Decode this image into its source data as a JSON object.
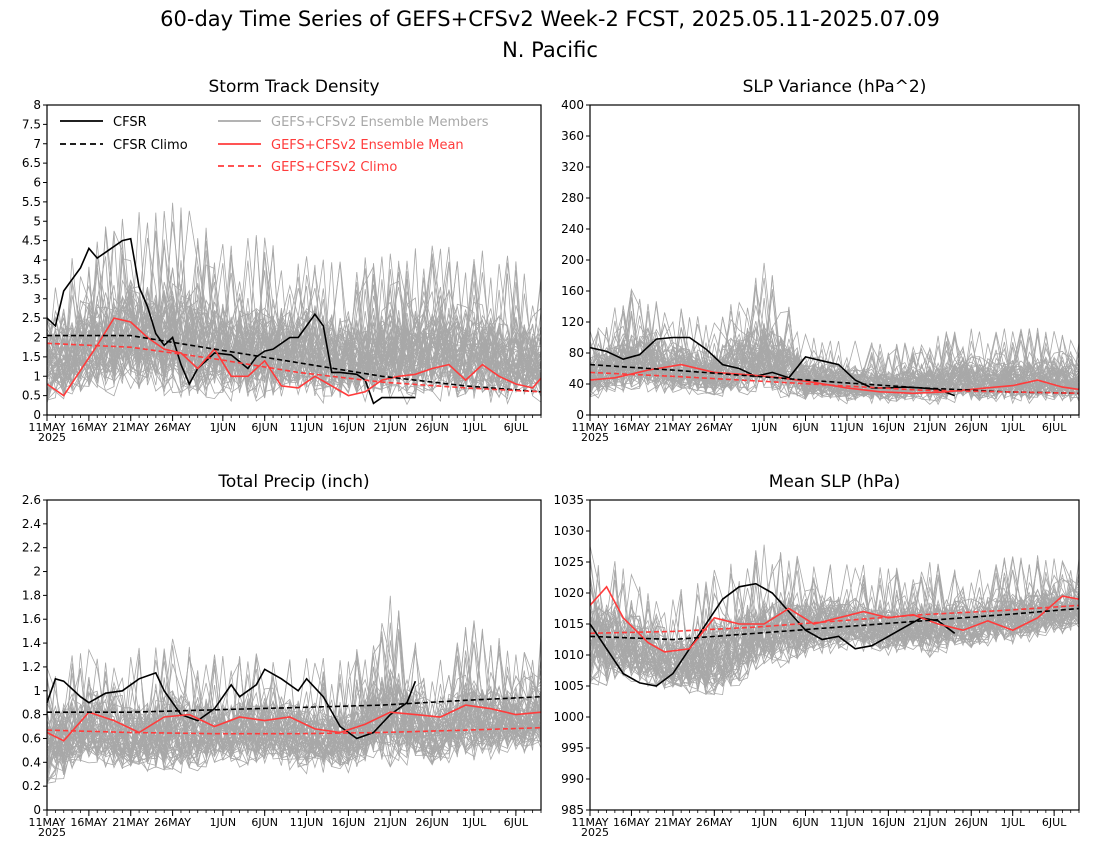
{
  "figure": {
    "title_line1": "60-day Time Series of GEFS+CFSv2 Week-2 FCST, 2025.05.11-2025.07.09",
    "title_line2": "N. Pacific"
  },
  "colors": {
    "members": "#a8a8a8",
    "cfsr": "#000000",
    "ens_mean": "#ff3b3b"
  },
  "legend": {
    "cfsr": "CFSR",
    "cfsr_climo": "CFSR Climo",
    "members": "GEFS+CFSv2 Ensemble Members",
    "ens_mean": "GEFS+CFSv2 Ensemble Mean",
    "gefs_climo": "GEFS+CFSv2 Climo",
    "placement": "top-left of Storm Track Density panel"
  },
  "x_axis": {
    "type": "date",
    "range": [
      "2025-05-11",
      "2025-07-09"
    ],
    "ticks": [
      {
        "date": "2025-05-11",
        "label": "11MAY"
      },
      {
        "date": "2025-05-16",
        "label": "16MAY"
      },
      {
        "date": "2025-05-21",
        "label": "21MAY"
      },
      {
        "date": "2025-05-26",
        "label": "26MAY"
      },
      {
        "date": "2025-06-01",
        "label": "1JUN"
      },
      {
        "date": "2025-06-06",
        "label": "6JUN"
      },
      {
        "date": "2025-06-11",
        "label": "11JUN"
      },
      {
        "date": "2025-06-16",
        "label": "16JUN"
      },
      {
        "date": "2025-06-21",
        "label": "21JUN"
      },
      {
        "date": "2025-06-26",
        "label": "26JUN"
      },
      {
        "date": "2025-07-01",
        "label": "1JUL"
      },
      {
        "date": "2025-07-06",
        "label": "6JUL"
      }
    ],
    "year_label": "2025"
  },
  "chart_data": [
    {
      "type": "line",
      "title": "Storm Track Density",
      "ylim": [
        0,
        8
      ],
      "yticks": [
        "0",
        "0.5",
        "1",
        "1.5",
        "2",
        "2.5",
        "3",
        "3.5",
        "4",
        "4.5",
        "5",
        "5.5",
        "6",
        "6.5",
        "7",
        "7.5",
        "8"
      ],
      "members_band": {
        "dates": [
          "2025-05-11",
          "2025-05-16",
          "2025-05-21",
          "2025-05-26",
          "2025-06-01",
          "2025-06-06",
          "2025-06-11",
          "2025-06-16",
          "2025-06-21",
          "2025-06-26",
          "2025-07-01",
          "2025-07-06",
          "2025-07-09"
        ],
        "low": [
          0.2,
          0.2,
          0.3,
          0.1,
          0.1,
          0.1,
          0.1,
          0.1,
          0.1,
          0.1,
          0.1,
          0.1,
          0.1
        ],
        "high": [
          3.2,
          4.7,
          5.2,
          5.7,
          4.6,
          4.7,
          4.3,
          4.0,
          4.2,
          4.5,
          4.3,
          4.1,
          3.9
        ]
      },
      "series": [
        {
          "name": "CFSR",
          "style": "solid-black",
          "x": [
            "2025-05-11",
            "2025-05-12",
            "2025-05-13",
            "2025-05-15",
            "2025-05-16",
            "2025-05-17",
            "2025-05-18",
            "2025-05-20",
            "2025-05-21",
            "2025-05-22",
            "2025-05-23",
            "2025-05-24",
            "2025-05-25",
            "2025-05-26",
            "2025-05-27",
            "2025-05-28",
            "2025-05-29",
            "2025-05-31",
            "2025-06-02",
            "2025-06-04",
            "2025-06-05",
            "2025-06-06",
            "2025-06-07",
            "2025-06-09",
            "2025-06-10",
            "2025-06-11",
            "2025-06-12",
            "2025-06-13",
            "2025-06-14",
            "2025-06-15",
            "2025-06-17",
            "2025-06-18",
            "2025-06-19",
            "2025-06-20",
            "2025-06-24"
          ],
          "y": [
            2.5,
            2.3,
            3.2,
            3.8,
            4.3,
            4.05,
            4.2,
            4.5,
            4.55,
            3.3,
            2.8,
            2.1,
            1.8,
            2.0,
            1.3,
            0.8,
            1.2,
            1.6,
            1.55,
            1.2,
            1.5,
            1.65,
            1.7,
            2.0,
            2.0,
            2.3,
            2.6,
            2.3,
            1.1,
            1.1,
            1.05,
            0.9,
            0.3,
            0.45,
            0.45
          ]
        },
        {
          "name": "GEFS+CFSv2 Ensemble Mean",
          "style": "solid-red",
          "x": [
            "2025-05-11",
            "2025-05-13",
            "2025-05-17",
            "2025-05-19",
            "2025-05-21",
            "2025-05-23",
            "2025-05-25",
            "2025-05-27",
            "2025-05-29",
            "2025-05-31",
            "2025-06-02",
            "2025-06-04",
            "2025-06-06",
            "2025-06-08",
            "2025-06-10",
            "2025-06-12",
            "2025-06-14",
            "2025-06-16",
            "2025-06-18",
            "2025-06-20",
            "2025-06-22",
            "2025-06-24",
            "2025-06-26",
            "2025-06-28",
            "2025-06-30",
            "2025-07-02",
            "2025-07-04",
            "2025-07-06",
            "2025-07-08",
            "2025-07-09"
          ],
          "y": [
            0.8,
            0.5,
            1.8,
            2.5,
            2.4,
            2.0,
            1.7,
            1.6,
            1.2,
            1.7,
            1.0,
            1.0,
            1.4,
            0.75,
            0.7,
            1.0,
            0.75,
            0.5,
            0.6,
            0.9,
            1.0,
            1.05,
            1.2,
            1.3,
            0.9,
            1.3,
            1.0,
            0.8,
            0.7,
            0.95
          ]
        },
        {
          "name": "CFSR Climo",
          "style": "dashed-black",
          "x": [
            "2025-05-11",
            "2025-05-21",
            "2025-05-31",
            "2025-06-10",
            "2025-06-20",
            "2025-06-30",
            "2025-07-09"
          ],
          "y": [
            2.05,
            2.05,
            1.7,
            1.35,
            1.0,
            0.75,
            0.6
          ]
        },
        {
          "name": "GEFS+CFSv2 Climo",
          "style": "dashed-red",
          "x": [
            "2025-05-11",
            "2025-05-21",
            "2025-05-31",
            "2025-06-10",
            "2025-06-20",
            "2025-06-30",
            "2025-07-09"
          ],
          "y": [
            1.85,
            1.75,
            1.45,
            1.1,
            0.85,
            0.7,
            0.6
          ]
        }
      ]
    },
    {
      "type": "line",
      "title": "SLP Variance (hPa^2)",
      "ylim": [
        0,
        400
      ],
      "yticks": [
        "0",
        "40",
        "80",
        "120",
        "160",
        "200",
        "240",
        "280",
        "320",
        "360",
        "400"
      ],
      "members_band": {
        "dates": [
          "2025-05-11",
          "2025-05-16",
          "2025-05-21",
          "2025-05-26",
          "2025-06-01",
          "2025-06-06",
          "2025-06-11",
          "2025-06-16",
          "2025-06-21",
          "2025-06-26",
          "2025-07-01",
          "2025-07-06",
          "2025-07-09"
        ],
        "low": [
          20,
          20,
          18,
          15,
          15,
          12,
          10,
          10,
          10,
          10,
          10,
          10,
          10
        ],
        "high": [
          110,
          170,
          150,
          120,
          200,
          110,
          100,
          90,
          100,
          120,
          110,
          120,
          100
        ]
      },
      "series": [
        {
          "name": "CFSR",
          "style": "solid-black",
          "x": [
            "2025-05-11",
            "2025-05-13",
            "2025-05-15",
            "2025-05-17",
            "2025-05-19",
            "2025-05-21",
            "2025-05-23",
            "2025-05-25",
            "2025-05-27",
            "2025-05-29",
            "2025-05-31",
            "2025-06-02",
            "2025-06-04",
            "2025-06-06",
            "2025-06-08",
            "2025-06-10",
            "2025-06-12",
            "2025-06-14",
            "2025-06-16",
            "2025-06-18",
            "2025-06-20",
            "2025-06-22",
            "2025-06-24"
          ],
          "y": [
            87,
            82,
            72,
            78,
            98,
            100,
            100,
            85,
            65,
            60,
            50,
            55,
            48,
            75,
            70,
            65,
            45,
            35,
            35,
            36,
            35,
            33,
            25
          ]
        },
        {
          "name": "GEFS+CFSv2 Ensemble Mean",
          "style": "solid-red",
          "x": [
            "2025-05-11",
            "2025-05-14",
            "2025-05-18",
            "2025-05-22",
            "2025-05-26",
            "2025-05-30",
            "2025-06-03",
            "2025-06-07",
            "2025-06-11",
            "2025-06-15",
            "2025-06-19",
            "2025-06-23",
            "2025-06-27",
            "2025-07-01",
            "2025-07-04",
            "2025-07-07",
            "2025-07-09"
          ],
          "y": [
            45,
            48,
            58,
            65,
            55,
            52,
            48,
            42,
            35,
            30,
            28,
            30,
            34,
            38,
            45,
            36,
            33
          ]
        },
        {
          "name": "CFSR Climo",
          "style": "dashed-black",
          "x": [
            "2025-05-11",
            "2025-05-21",
            "2025-05-31",
            "2025-06-10",
            "2025-06-20",
            "2025-06-30",
            "2025-07-09"
          ],
          "y": [
            65,
            58,
            50,
            42,
            35,
            30,
            28
          ]
        },
        {
          "name": "GEFS+CFSv2 Climo",
          "style": "dashed-red",
          "x": [
            "2025-05-11",
            "2025-05-21",
            "2025-05-31",
            "2025-06-10",
            "2025-06-20",
            "2025-06-30",
            "2025-07-09"
          ],
          "y": [
            55,
            50,
            44,
            38,
            32,
            30,
            28
          ]
        }
      ]
    },
    {
      "type": "line",
      "title": "Total Precip (inch)",
      "ylim": [
        0,
        2.6
      ],
      "yticks": [
        "0",
        "0.2",
        "0.4",
        "0.6",
        "0.8",
        "1",
        "1.2",
        "1.4",
        "1.6",
        "1.8",
        "2",
        "2.2",
        "2.4",
        "2.6"
      ],
      "members_band": {
        "dates": [
          "2025-05-11",
          "2025-05-16",
          "2025-05-21",
          "2025-05-26",
          "2025-06-01",
          "2025-06-06",
          "2025-06-11",
          "2025-06-16",
          "2025-06-21",
          "2025-06-26",
          "2025-07-01",
          "2025-07-06",
          "2025-07-09"
        ],
        "low": [
          0.2,
          0.3,
          0.25,
          0.2,
          0.3,
          0.3,
          0.25,
          0.25,
          0.3,
          0.3,
          0.35,
          0.4,
          0.4
        ],
        "high": [
          1.3,
          1.4,
          1.35,
          1.45,
          1.3,
          1.4,
          1.3,
          1.25,
          1.8,
          1.3,
          1.6,
          1.4,
          1.5
        ]
      },
      "series": [
        {
          "name": "CFSR",
          "style": "solid-black",
          "x": [
            "2025-05-11",
            "2025-05-12",
            "2025-05-13",
            "2025-05-15",
            "2025-05-16",
            "2025-05-18",
            "2025-05-20",
            "2025-05-22",
            "2025-05-24",
            "2025-05-25",
            "2025-05-27",
            "2025-05-29",
            "2025-05-31",
            "2025-06-02",
            "2025-06-03",
            "2025-06-05",
            "2025-06-06",
            "2025-06-08",
            "2025-06-10",
            "2025-06-11",
            "2025-06-13",
            "2025-06-15",
            "2025-06-17",
            "2025-06-19",
            "2025-06-21",
            "2025-06-23",
            "2025-06-24"
          ],
          "y": [
            0.9,
            1.1,
            1.08,
            0.95,
            0.9,
            0.98,
            1.0,
            1.1,
            1.15,
            1.0,
            0.8,
            0.75,
            0.85,
            1.05,
            0.95,
            1.05,
            1.18,
            1.1,
            1.0,
            1.1,
            0.95,
            0.7,
            0.6,
            0.65,
            0.8,
            0.9,
            1.08
          ]
        },
        {
          "name": "GEFS+CFSv2 Ensemble Mean",
          "style": "solid-red",
          "x": [
            "2025-05-11",
            "2025-05-13",
            "2025-05-16",
            "2025-05-19",
            "2025-05-22",
            "2025-05-25",
            "2025-05-28",
            "2025-05-31",
            "2025-06-03",
            "2025-06-06",
            "2025-06-09",
            "2025-06-12",
            "2025-06-15",
            "2025-06-18",
            "2025-06-21",
            "2025-06-24",
            "2025-06-27",
            "2025-06-30",
            "2025-07-03",
            "2025-07-06",
            "2025-07-09"
          ],
          "y": [
            0.65,
            0.58,
            0.82,
            0.75,
            0.65,
            0.78,
            0.8,
            0.7,
            0.78,
            0.75,
            0.78,
            0.68,
            0.65,
            0.72,
            0.82,
            0.8,
            0.78,
            0.88,
            0.85,
            0.8,
            0.82
          ]
        },
        {
          "name": "CFSR Climo",
          "style": "dashed-black",
          "x": [
            "2025-05-11",
            "2025-05-21",
            "2025-05-31",
            "2025-06-10",
            "2025-06-20",
            "2025-06-30",
            "2025-07-09"
          ],
          "y": [
            0.82,
            0.82,
            0.84,
            0.86,
            0.88,
            0.92,
            0.95
          ]
        },
        {
          "name": "GEFS+CFSv2 Climo",
          "style": "dashed-red",
          "x": [
            "2025-05-11",
            "2025-05-21",
            "2025-05-31",
            "2025-06-10",
            "2025-06-20",
            "2025-06-30",
            "2025-07-09"
          ],
          "y": [
            0.67,
            0.65,
            0.64,
            0.64,
            0.65,
            0.67,
            0.69
          ]
        }
      ]
    },
    {
      "type": "line",
      "title": "Mean SLP (hPa)",
      "ylim": [
        985,
        1035
      ],
      "yticks": [
        "985",
        "990",
        "995",
        "1000",
        "1005",
        "1010",
        "1015",
        "1020",
        "1025",
        "1030",
        "1035"
      ],
      "members_band": {
        "dates": [
          "2025-05-11",
          "2025-05-16",
          "2025-05-21",
          "2025-05-26",
          "2025-06-01",
          "2025-06-06",
          "2025-06-11",
          "2025-06-16",
          "2025-06-21",
          "2025-06-26",
          "2025-07-01",
          "2025-07-06",
          "2025-07-09"
        ],
        "low": [
          1005,
          1004,
          1003,
          1001,
          1006,
          1008,
          1010,
          1009,
          1009,
          1010,
          1011,
          1012,
          1013
        ],
        "high": [
          1030,
          1024,
          1020,
          1024,
          1028,
          1027,
          1025,
          1024,
          1025,
          1025,
          1026,
          1027,
          1026
        ]
      },
      "series": [
        {
          "name": "CFSR",
          "style": "solid-black",
          "x": [
            "2025-05-11",
            "2025-05-13",
            "2025-05-15",
            "2025-05-17",
            "2025-05-19",
            "2025-05-21",
            "2025-05-23",
            "2025-05-25",
            "2025-05-27",
            "2025-05-29",
            "2025-05-31",
            "2025-06-02",
            "2025-06-04",
            "2025-06-06",
            "2025-06-08",
            "2025-06-10",
            "2025-06-12",
            "2025-06-14",
            "2025-06-16",
            "2025-06-18",
            "2025-06-20",
            "2025-06-22",
            "2025-06-24"
          ],
          "y": [
            1015,
            1011,
            1007,
            1005.5,
            1005,
            1007,
            1011,
            1015,
            1019,
            1021,
            1021.5,
            1020,
            1017,
            1014,
            1012.5,
            1013,
            1011,
            1011.5,
            1013,
            1014.5,
            1016,
            1015.5,
            1013.5
          ]
        },
        {
          "name": "GEFS+CFSv2 Ensemble Mean",
          "style": "solid-red",
          "x": [
            "2025-05-11",
            "2025-05-13",
            "2025-05-15",
            "2025-05-18",
            "2025-05-20",
            "2025-05-23",
            "2025-05-26",
            "2025-05-29",
            "2025-06-01",
            "2025-06-04",
            "2025-06-07",
            "2025-06-10",
            "2025-06-13",
            "2025-06-16",
            "2025-06-19",
            "2025-06-22",
            "2025-06-25",
            "2025-06-28",
            "2025-07-01",
            "2025-07-04",
            "2025-07-07",
            "2025-07-09"
          ],
          "y": [
            1018,
            1021,
            1016,
            1012,
            1010.5,
            1011,
            1016,
            1015,
            1015,
            1017.5,
            1015,
            1016,
            1017,
            1016,
            1016.5,
            1015,
            1014,
            1015.5,
            1014,
            1016,
            1019.5,
            1019
          ]
        },
        {
          "name": "CFSR Climo",
          "style": "dashed-black",
          "x": [
            "2025-05-11",
            "2025-05-21",
            "2025-05-31",
            "2025-06-10",
            "2025-06-20",
            "2025-06-30",
            "2025-07-09"
          ],
          "y": [
            1013,
            1012.5,
            1013.5,
            1014.5,
            1015.5,
            1016.5,
            1017.5
          ]
        },
        {
          "name": "GEFS+CFSv2 Climo",
          "style": "dashed-red",
          "x": [
            "2025-05-11",
            "2025-05-21",
            "2025-05-31",
            "2025-06-10",
            "2025-06-20",
            "2025-06-30",
            "2025-07-09"
          ],
          "y": [
            1013.5,
            1013.8,
            1014.5,
            1015.5,
            1016.5,
            1017.2,
            1018
          ]
        }
      ]
    }
  ]
}
